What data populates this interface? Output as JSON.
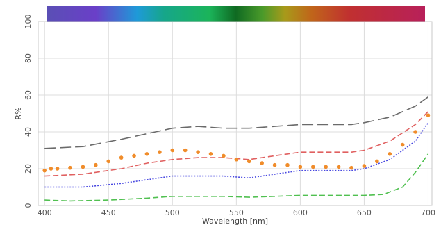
{
  "chart_data": {
    "type": "line",
    "title": "",
    "xlabel": "Wavelength [nm]",
    "ylabel": "R%",
    "xlim": [
      395,
      703
    ],
    "ylim": [
      0,
      100
    ],
    "x_ticks": [
      400,
      450,
      500,
      550,
      600,
      650,
      700
    ],
    "y_ticks": [
      0,
      20,
      40,
      60,
      80,
      100
    ],
    "x_tick_labels": [
      "400",
      "450",
      "500",
      "550",
      "600",
      "650",
      "700"
    ],
    "y_tick_labels": [
      "0",
      "20",
      "40",
      "60",
      "80",
      "100"
    ],
    "grid": true,
    "spectrum_bar": {
      "colors": [
        "#5a4fb5",
        "#6a3fc8",
        "#1e9ad8",
        "#16a68a",
        "#1bb45a",
        "#0f6a22",
        "#4a9a2a",
        "#a89a1a",
        "#c0651a",
        "#c03030",
        "#b8205a"
      ],
      "stops": [
        0,
        0.13,
        0.24,
        0.31,
        0.43,
        0.5,
        0.57,
        0.63,
        0.7,
        0.8,
        1
      ]
    },
    "series": [
      {
        "color": "#6a6a6a",
        "style": "long-dash",
        "x": [
          400,
          430,
          460,
          480,
          500,
          520,
          540,
          560,
          580,
          600,
          620,
          640,
          650,
          670,
          690,
          700
        ],
        "y": [
          31,
          32,
          36,
          39,
          42,
          43,
          42,
          42,
          43,
          44,
          44,
          44,
          45,
          48,
          54,
          59
        ]
      },
      {
        "color": "#e06060",
        "style": "dash",
        "x": [
          400,
          430,
          460,
          480,
          500,
          520,
          540,
          560,
          580,
          600,
          620,
          640,
          650,
          670,
          690,
          700
        ],
        "y": [
          16,
          17,
          20,
          23,
          25,
          26,
          26,
          25,
          27,
          29,
          29,
          29,
          30,
          35,
          44,
          51
        ]
      },
      {
        "color": "#4848e0",
        "style": "dot",
        "x": [
          400,
          430,
          460,
          480,
          500,
          520,
          540,
          560,
          580,
          600,
          620,
          640,
          650,
          670,
          690,
          700
        ],
        "y": [
          10,
          10,
          12,
          14,
          16,
          16,
          16,
          15,
          17,
          19,
          19,
          19,
          20,
          25,
          35,
          45
        ]
      },
      {
        "color": "#50c050",
        "style": "dash",
        "x": [
          400,
          420,
          450,
          480,
          500,
          520,
          540,
          560,
          580,
          600,
          620,
          640,
          650,
          665,
          680,
          690,
          700
        ],
        "y": [
          3,
          2.5,
          3,
          4,
          5,
          5,
          5,
          4.5,
          5,
          5.5,
          5.5,
          5.5,
          5.5,
          6,
          10,
          18,
          28
        ]
      },
      {
        "color": "#f08c2a",
        "style": "markers",
        "x": [
          400,
          405,
          410,
          420,
          430,
          440,
          450,
          460,
          470,
          480,
          490,
          500,
          510,
          520,
          530,
          540,
          550,
          560,
          570,
          580,
          590,
          600,
          610,
          620,
          630,
          640,
          650,
          660,
          670,
          680,
          690,
          700
        ],
        "y": [
          19,
          20,
          20,
          20.5,
          21,
          22,
          24,
          26,
          27,
          28,
          29,
          30,
          30,
          29,
          28,
          27,
          25,
          24,
          23,
          22,
          22,
          21,
          21,
          21,
          21,
          20.5,
          21.5,
          24,
          28,
          33,
          40,
          49
        ]
      }
    ]
  }
}
